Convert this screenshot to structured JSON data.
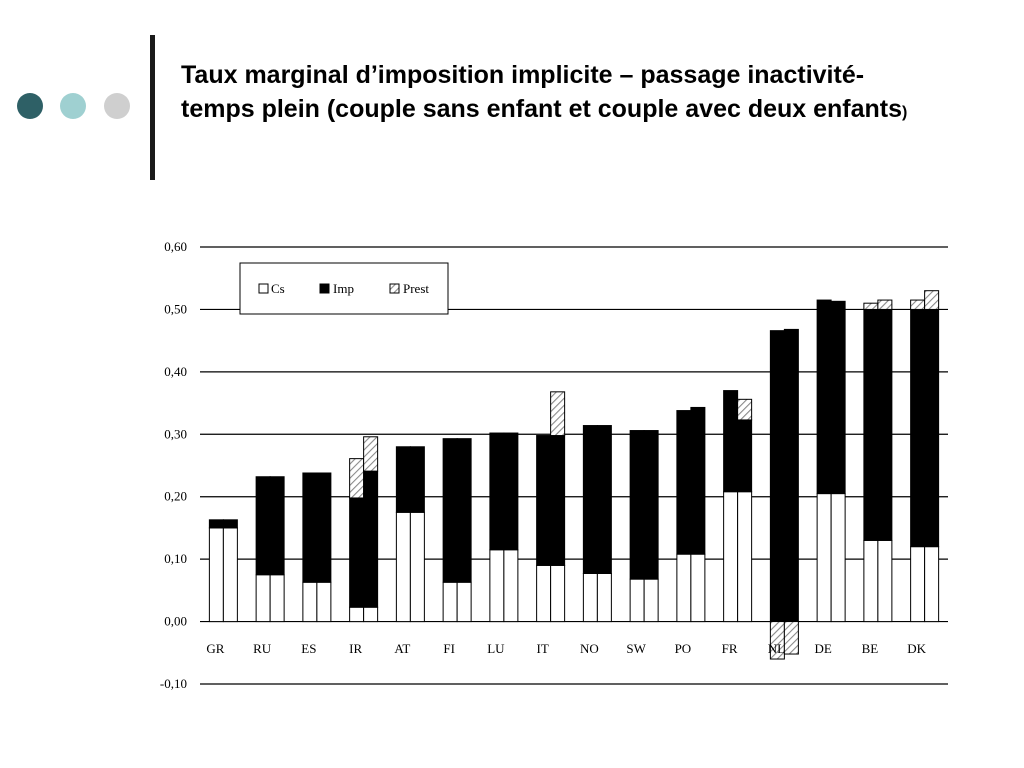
{
  "slide": {
    "title_main": "Taux marginal d’imposition implicite – passage inactivité-temps plein (couple sans enfant et couple avec deux enfants",
    "title_paren": ")"
  },
  "colors": {
    "accent_dark": "#2e6066",
    "accent_light": "#9fd0d1",
    "accent_grey": "#cfcfcf",
    "imp": "#000000",
    "cs": "#ffffff",
    "prest_hatch": "#8a8a8a"
  },
  "chart_data": {
    "type": "bar",
    "stacked": true,
    "bars_per_category": 2,
    "categories": [
      "GR",
      "RU",
      "ES",
      "IR",
      "AT",
      "FI",
      "LU",
      "IT",
      "NO",
      "SW",
      "PO",
      "FR",
      "NL",
      "DE",
      "BE",
      "DK"
    ],
    "ylim": [
      -0.1,
      0.6
    ],
    "yticks": [
      "0,60",
      "0,50",
      "0,40",
      "0,30",
      "0,20",
      "0,10",
      "0,00",
      "-0,10"
    ],
    "ytick_values": [
      0.6,
      0.5,
      0.4,
      0.3,
      0.2,
      0.1,
      0.0,
      -0.1
    ],
    "grid": true,
    "legend_position": "top-left",
    "series": [
      {
        "name": "Cs",
        "values": [
          [
            0.15,
            0.15
          ],
          [
            0.075,
            0.075
          ],
          [
            0.063,
            0.063
          ],
          [
            0.023,
            0.023
          ],
          [
            0.175,
            0.175
          ],
          [
            0.063,
            0.063
          ],
          [
            0.115,
            0.115
          ],
          [
            0.09,
            0.09
          ],
          [
            0.077,
            0.077
          ],
          [
            0.068,
            0.068
          ],
          [
            0.108,
            0.108
          ],
          [
            0.208,
            0.208
          ],
          [
            0.0,
            0.0
          ],
          [
            0.205,
            0.205
          ],
          [
            0.13,
            0.13
          ],
          [
            0.12,
            0.12
          ]
        ]
      },
      {
        "name": "Imp",
        "values": [
          [
            0.013,
            0.013
          ],
          [
            0.157,
            0.157
          ],
          [
            0.175,
            0.175
          ],
          [
            0.175,
            0.218
          ],
          [
            0.105,
            0.105
          ],
          [
            0.23,
            0.23
          ],
          [
            0.187,
            0.187
          ],
          [
            0.208,
            0.208
          ],
          [
            0.237,
            0.237
          ],
          [
            0.238,
            0.238
          ],
          [
            0.23,
            0.235
          ],
          [
            0.162,
            0.115
          ],
          [
            0.466,
            0.468
          ],
          [
            0.31,
            0.308
          ],
          [
            0.37,
            0.37
          ],
          [
            0.38,
            0.38
          ]
        ]
      },
      {
        "name": "Prest",
        "values": [
          [
            0.0,
            0.0
          ],
          [
            0.0,
            0.0
          ],
          [
            0.0,
            0.0
          ],
          [
            0.063,
            0.055
          ],
          [
            0.0,
            0.0
          ],
          [
            0.0,
            0.0
          ],
          [
            0.0,
            0.0
          ],
          [
            0.0,
            0.07
          ],
          [
            0.0,
            0.0
          ],
          [
            0.0,
            0.0
          ],
          [
            0.0,
            0.0
          ],
          [
            0.0,
            0.033
          ],
          [
            -0.06,
            -0.052
          ],
          [
            0.0,
            0.0
          ],
          [
            0.01,
            0.015
          ],
          [
            0.015,
            0.03
          ]
        ]
      }
    ]
  }
}
